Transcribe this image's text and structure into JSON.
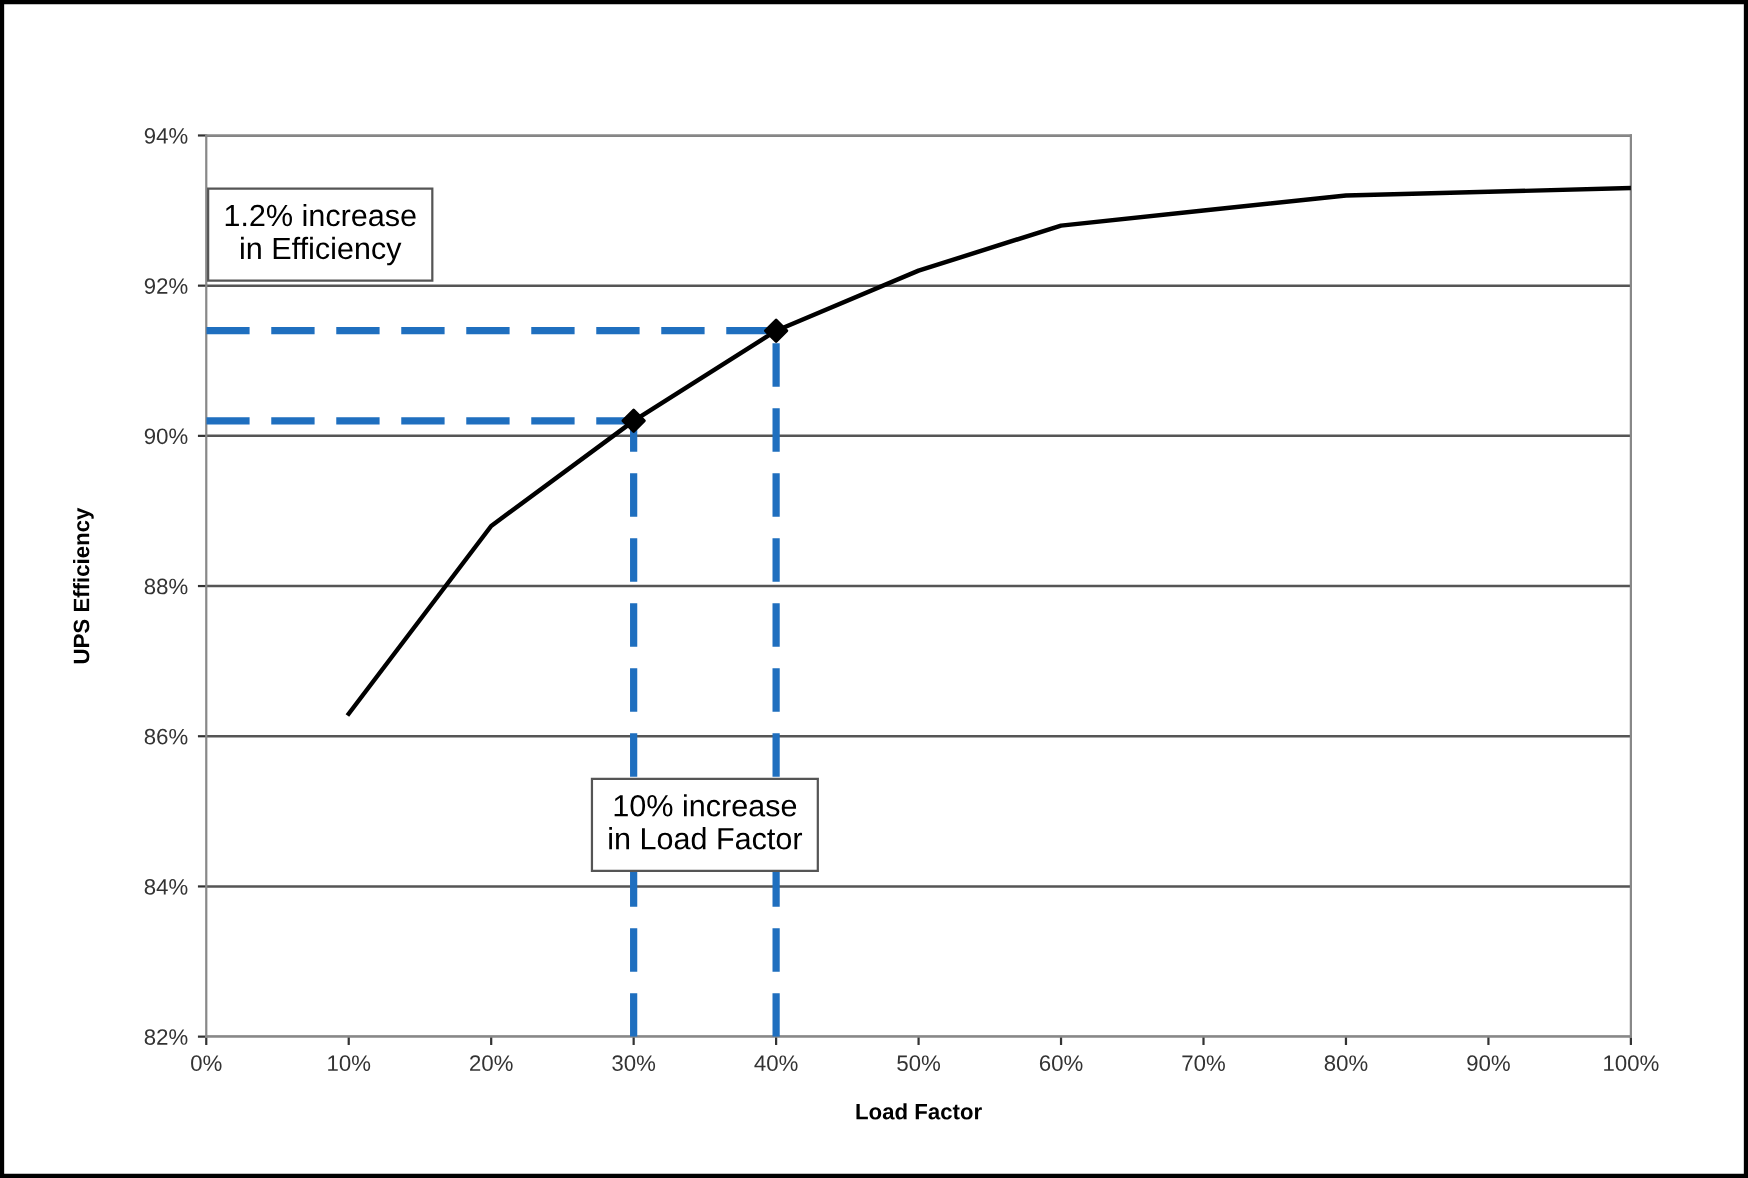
{
  "chart_data": {
    "type": "line",
    "xlabel": "Load Factor",
    "ylabel": "UPS Efficiency",
    "xlim": [
      0,
      100
    ],
    "ylim": [
      82,
      94
    ],
    "xticks": [
      {
        "value": 0,
        "label": "0%"
      },
      {
        "value": 10,
        "label": "10%"
      },
      {
        "value": 20,
        "label": "20%"
      },
      {
        "value": 30,
        "label": "30%"
      },
      {
        "value": 40,
        "label": "40%"
      },
      {
        "value": 50,
        "label": "50%"
      },
      {
        "value": 60,
        "label": "60%"
      },
      {
        "value": 70,
        "label": "70%"
      },
      {
        "value": 80,
        "label": "80%"
      },
      {
        "value": 90,
        "label": "90%"
      },
      {
        "value": 100,
        "label": "100%"
      }
    ],
    "yticks": [
      {
        "value": 82,
        "label": "82%"
      },
      {
        "value": 84,
        "label": "84%"
      },
      {
        "value": 86,
        "label": "86%"
      },
      {
        "value": 88,
        "label": "88%"
      },
      {
        "value": 90,
        "label": "90%"
      },
      {
        "value": 92,
        "label": "92%"
      },
      {
        "value": 94,
        "label": "94%"
      }
    ],
    "grid": "y",
    "legend": false,
    "series": [
      {
        "color": "#000000",
        "marker": "none",
        "line_style": "solid",
        "x": [
          10,
          20,
          30,
          40,
          50,
          60,
          70,
          80,
          90,
          100
        ],
        "values": [
          86.3,
          88.8,
          90.2,
          91.4,
          92.2,
          92.8,
          93.0,
          93.2,
          93.25,
          93.3
        ]
      },
      {
        "type": "line",
        "color": "#1f6fbf",
        "marker": "none",
        "line_style": "dashed",
        "x": [
          0,
          40
        ],
        "values": [
          91.4,
          91.4
        ]
      },
      {
        "type": "line",
        "color": "#1f6fbf",
        "marker": "none",
        "line_style": "dashed",
        "x": [
          0,
          30
        ],
        "values": [
          90.2,
          90.2
        ]
      },
      {
        "type": "line",
        "color": "#1f6fbf",
        "marker": "none",
        "line_style": "dashed",
        "x": [
          30,
          30
        ],
        "values": [
          82,
          90.2
        ]
      },
      {
        "type": "line",
        "color": "#1f6fbf",
        "marker": "none",
        "line_style": "dashed",
        "x": [
          40,
          40
        ],
        "values": [
          82,
          91.4
        ]
      },
      {
        "type": "scatter",
        "color": "#000000",
        "marker": "diamond",
        "x": [
          30,
          40
        ],
        "values": [
          90.2,
          91.4
        ]
      }
    ],
    "annotations": [
      "1.2% increase\nin Efficiency",
      "10% increase\nin Load Factor"
    ]
  }
}
